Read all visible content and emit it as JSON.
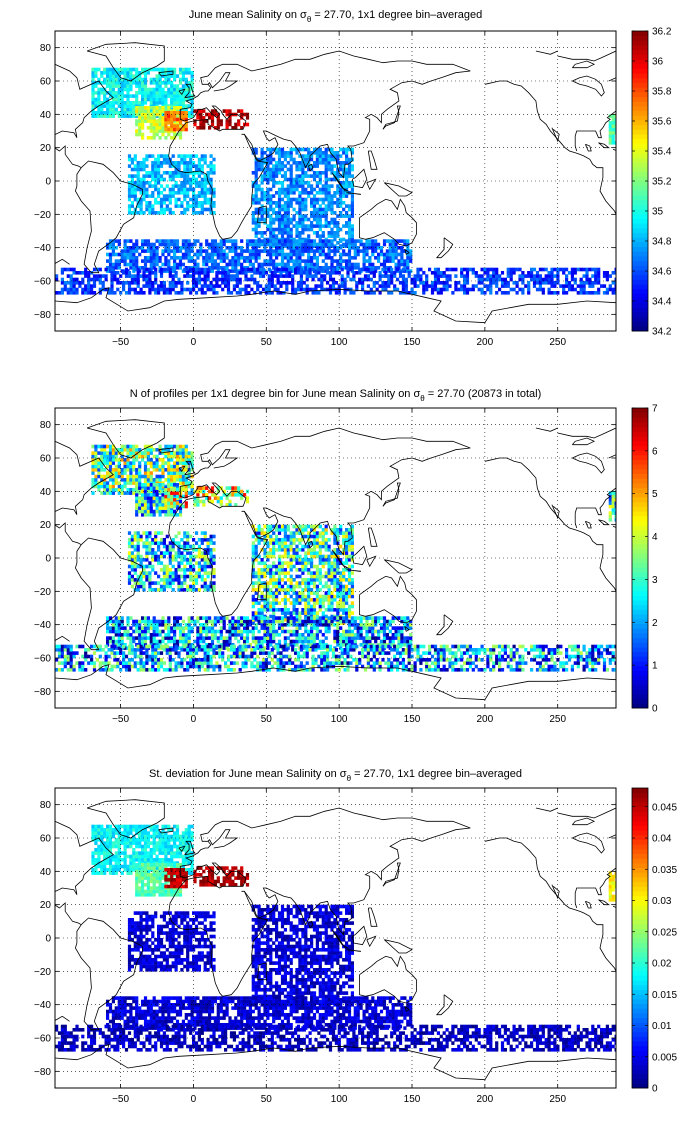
{
  "chart_data": [
    {
      "type": "heatmap",
      "title": "June mean Salinity on σθ = 27.70, 1x1 degree bin–averaged",
      "title_parts": {
        "before": "June mean Salinity on σ",
        "sub": "θ",
        "after": " = 27.70, 1x1 degree bin–averaged"
      },
      "xlabel": "",
      "ylabel": "",
      "xlim": [
        -95,
        290
      ],
      "ylim": [
        -90,
        90
      ],
      "xticks": [
        -50,
        0,
        50,
        100,
        150,
        200,
        250
      ],
      "yticks": [
        -80,
        -60,
        -40,
        -20,
        0,
        20,
        40,
        60,
        80
      ],
      "grid": true,
      "colormap": "jet",
      "clim": [
        34.2,
        36.2
      ],
      "colorbar_ticks": [
        "34.2",
        "34.4",
        "34.6",
        "34.8",
        "35",
        "35.2",
        "35.4",
        "35.6",
        "35.8",
        "36",
        "36.2"
      ],
      "field_description": "salinity per 1x1 degree bin",
      "regions": [
        {
          "lon": [
            -70,
            0
          ],
          "lat": [
            38,
            67
          ],
          "value": 34.95,
          "density": 0.85
        },
        {
          "lon": [
            -40,
            -8
          ],
          "lat": [
            25,
            45
          ],
          "value": 35.35,
          "density": 0.9
        },
        {
          "lon": [
            -20,
            -5
          ],
          "lat": [
            30,
            42
          ],
          "value": 35.75,
          "density": 0.8
        },
        {
          "lon": [
            0,
            38
          ],
          "lat": [
            31,
            43
          ],
          "value": 36.1,
          "density": 0.55
        },
        {
          "lon": [
            -45,
            15
          ],
          "lat": [
            -20,
            15
          ],
          "value": 34.82,
          "density": 0.7
        },
        {
          "lon": [
            40,
            110
          ],
          "lat": [
            -40,
            20
          ],
          "value": 34.72,
          "density": 0.7
        },
        {
          "lon": [
            -60,
            150
          ],
          "lat": [
            -55,
            -35
          ],
          "value": 34.65,
          "density": 0.75
        },
        {
          "lon": [
            -95,
            290
          ],
          "lat": [
            -68,
            -52
          ],
          "value": 34.55,
          "density": 0.6
        },
        {
          "lon": [
            285,
            290
          ],
          "lat": [
            22,
            40
          ],
          "value": 35.1,
          "density": 0.9
        }
      ]
    },
    {
      "type": "heatmap",
      "title": "N of profiles per 1x1 degree bin for June mean Salinity on σθ = 27.70 (20873 in total)",
      "title_parts": {
        "before": "N of profiles per 1x1 degree bin for June mean Salinity on σ",
        "sub": "θ",
        "after": " = 27.70 (20873 in total)"
      },
      "xlabel": "",
      "ylabel": "",
      "xlim": [
        -95,
        290
      ],
      "ylim": [
        -90,
        90
      ],
      "xticks": [
        -50,
        0,
        50,
        100,
        150,
        200,
        250
      ],
      "yticks": [
        -80,
        -60,
        -40,
        -20,
        0,
        20,
        40,
        60,
        80
      ],
      "grid": true,
      "colormap": "jet",
      "clim": [
        0,
        7
      ],
      "colorbar_ticks": [
        "0",
        "1",
        "2",
        "3",
        "4",
        "5",
        "6",
        "7"
      ],
      "total_profiles": 20873,
      "field_description": "number of profiles per 1x1 degree bin",
      "regions": [
        {
          "lon": [
            -70,
            0
          ],
          "lat": [
            38,
            67
          ],
          "value": 3.2,
          "density": 0.85
        },
        {
          "lon": [
            -40,
            -8
          ],
          "lat": [
            25,
            45
          ],
          "value": 2.6,
          "density": 0.9
        },
        {
          "lon": [
            -20,
            -5
          ],
          "lat": [
            30,
            42
          ],
          "value": 4.5,
          "density": 0.8
        },
        {
          "lon": [
            0,
            38
          ],
          "lat": [
            31,
            43
          ],
          "value": 4.2,
          "density": 0.55
        },
        {
          "lon": [
            -45,
            15
          ],
          "lat": [
            -20,
            15
          ],
          "value": 2.4,
          "density": 0.7
        },
        {
          "lon": [
            40,
            110
          ],
          "lat": [
            -40,
            20
          ],
          "value": 2.8,
          "density": 0.7
        },
        {
          "lon": [
            -60,
            150
          ],
          "lat": [
            -55,
            -35
          ],
          "value": 2.0,
          "density": 0.75
        },
        {
          "lon": [
            -95,
            290
          ],
          "lat": [
            -68,
            -52
          ],
          "value": 2.0,
          "density": 0.6
        },
        {
          "lon": [
            285,
            290
          ],
          "lat": [
            22,
            40
          ],
          "value": 3.0,
          "density": 0.9
        }
      ]
    },
    {
      "type": "heatmap",
      "title": "St. deviation for June mean Salinity on σθ = 27.70, 1x1 degree bin–averaged",
      "title_parts": {
        "before": "St. deviation for June mean Salinity on σ",
        "sub": "θ",
        "after": " = 27.70, 1x1 degree bin–averaged"
      },
      "xlabel": "",
      "ylabel": "",
      "xlim": [
        -95,
        290
      ],
      "ylim": [
        -90,
        90
      ],
      "xticks": [
        -50,
        0,
        50,
        100,
        150,
        200,
        250
      ],
      "yticks": [
        -80,
        -60,
        -40,
        -20,
        0,
        20,
        40,
        60,
        80
      ],
      "grid": true,
      "colormap": "jet",
      "clim": [
        0,
        0.048
      ],
      "colorbar_ticks": [
        "0",
        "0.005",
        "0.01",
        "0.015",
        "0.02",
        "0.025",
        "0.03",
        "0.035",
        "0.04",
        "0.045"
      ],
      "field_description": "standard deviation of salinity per 1x1 degree bin",
      "regions": [
        {
          "lon": [
            -70,
            0
          ],
          "lat": [
            38,
            67
          ],
          "value": 0.018,
          "density": 0.85
        },
        {
          "lon": [
            -40,
            -8
          ],
          "lat": [
            25,
            45
          ],
          "value": 0.022,
          "density": 0.9
        },
        {
          "lon": [
            -20,
            -5
          ],
          "lat": [
            30,
            42
          ],
          "value": 0.045,
          "density": 0.8
        },
        {
          "lon": [
            0,
            38
          ],
          "lat": [
            31,
            43
          ],
          "value": 0.046,
          "density": 0.55
        },
        {
          "lon": [
            -45,
            15
          ],
          "lat": [
            -20,
            15
          ],
          "value": 0.004,
          "density": 0.7
        },
        {
          "lon": [
            40,
            110
          ],
          "lat": [
            -40,
            20
          ],
          "value": 0.004,
          "density": 0.7
        },
        {
          "lon": [
            -60,
            150
          ],
          "lat": [
            -55,
            -35
          ],
          "value": 0.004,
          "density": 0.75
        },
        {
          "lon": [
            -95,
            290
          ],
          "lat": [
            -68,
            -52
          ],
          "value": 0.003,
          "density": 0.6
        },
        {
          "lon": [
            285,
            290
          ],
          "lat": [
            22,
            40
          ],
          "value": 0.03,
          "density": 0.9
        }
      ]
    }
  ]
}
